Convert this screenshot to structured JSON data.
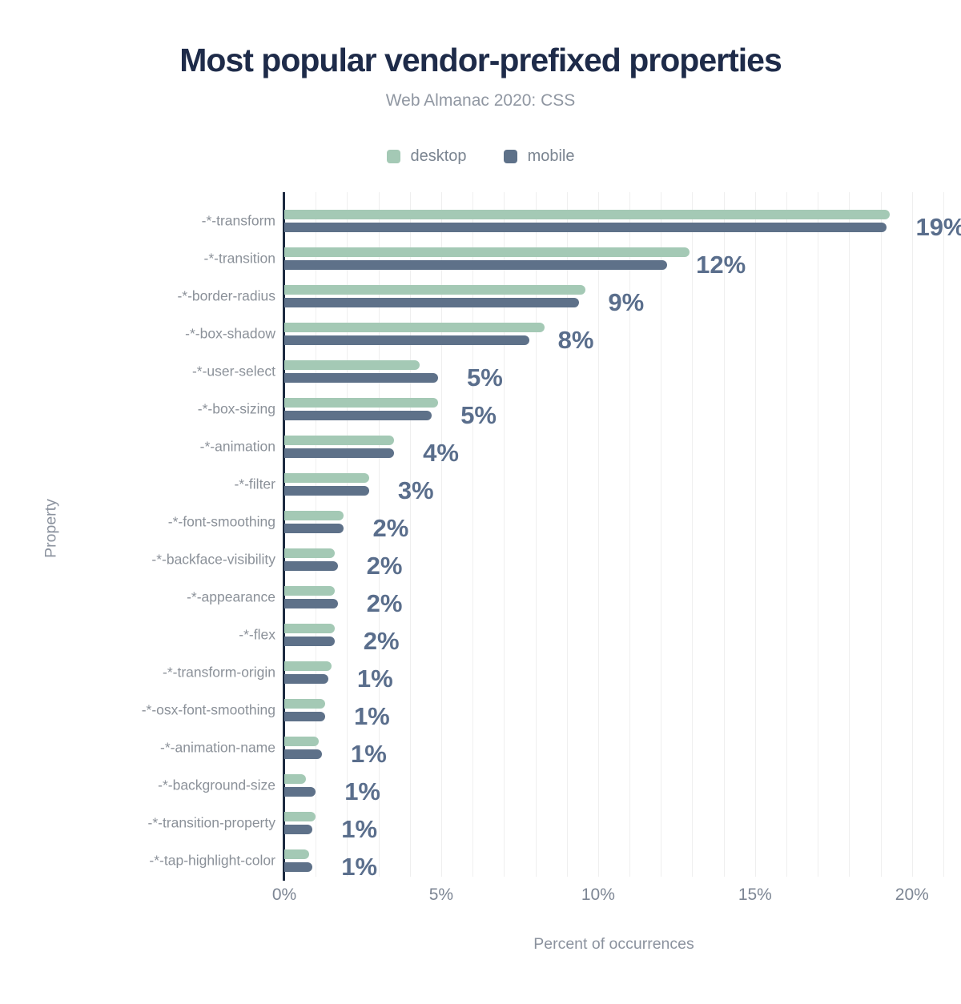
{
  "header": {
    "title": "Most popular vendor-prefixed properties",
    "subtitle": "Web Almanac 2020: CSS"
  },
  "legend": {
    "items": [
      {
        "label": "desktop",
        "color": "#a4c9b5"
      },
      {
        "label": "mobile",
        "color": "#5e7189"
      }
    ]
  },
  "chart_data": {
    "type": "bar",
    "orientation": "horizontal",
    "title": "Most popular vendor-prefixed properties",
    "subtitle": "Web Almanac 2020: CSS",
    "xlabel": "Percent of occurrences",
    "ylabel": "Property",
    "xlim": [
      0,
      21
    ],
    "x_tick_step": 5,
    "x_ticks": [
      "0%",
      "5%",
      "10%",
      "15%",
      "20%"
    ],
    "grid": "vertical, every 1%",
    "legend_position": "top-center",
    "categories": [
      "-*-transform",
      "-*-transition",
      "-*-border-radius",
      "-*-box-shadow",
      "-*-user-select",
      "-*-box-sizing",
      "-*-animation",
      "-*-filter",
      "-*-font-smoothing",
      "-*-backface-visibility",
      "-*-appearance",
      "-*-flex",
      "-*-transform-origin",
      "-*-osx-font-smoothing",
      "-*-animation-name",
      "-*-background-size",
      "-*-transition-property",
      "-*-tap-highlight-color"
    ],
    "series": [
      {
        "name": "desktop",
        "color": "#a4c9b5",
        "values": [
          19.3,
          12.9,
          9.6,
          8.3,
          4.3,
          4.9,
          3.5,
          2.7,
          1.9,
          1.6,
          1.6,
          1.6,
          1.5,
          1.3,
          1.1,
          0.7,
          1.0,
          0.8
        ]
      },
      {
        "name": "mobile",
        "color": "#5e7189",
        "values": [
          19.2,
          12.2,
          9.4,
          7.8,
          4.9,
          4.7,
          3.5,
          2.7,
          1.9,
          1.7,
          1.7,
          1.6,
          1.4,
          1.3,
          1.2,
          1.0,
          0.9,
          0.9
        ]
      }
    ],
    "value_labels": [
      "19%",
      "12%",
      "9%",
      "8%",
      "5%",
      "5%",
      "4%",
      "3%",
      "2%",
      "2%",
      "2%",
      "2%",
      "1%",
      "1%",
      "1%",
      "1%",
      "1%",
      "1%"
    ],
    "value_label_color": "#5a6e8c"
  },
  "colors": {
    "title": "#1e2b49",
    "subtitle": "#9097a2",
    "axis_line": "#1c2a40",
    "grid_line": "#efefef",
    "tick_label": "#7d8694",
    "category_label": "#8b9199"
  }
}
